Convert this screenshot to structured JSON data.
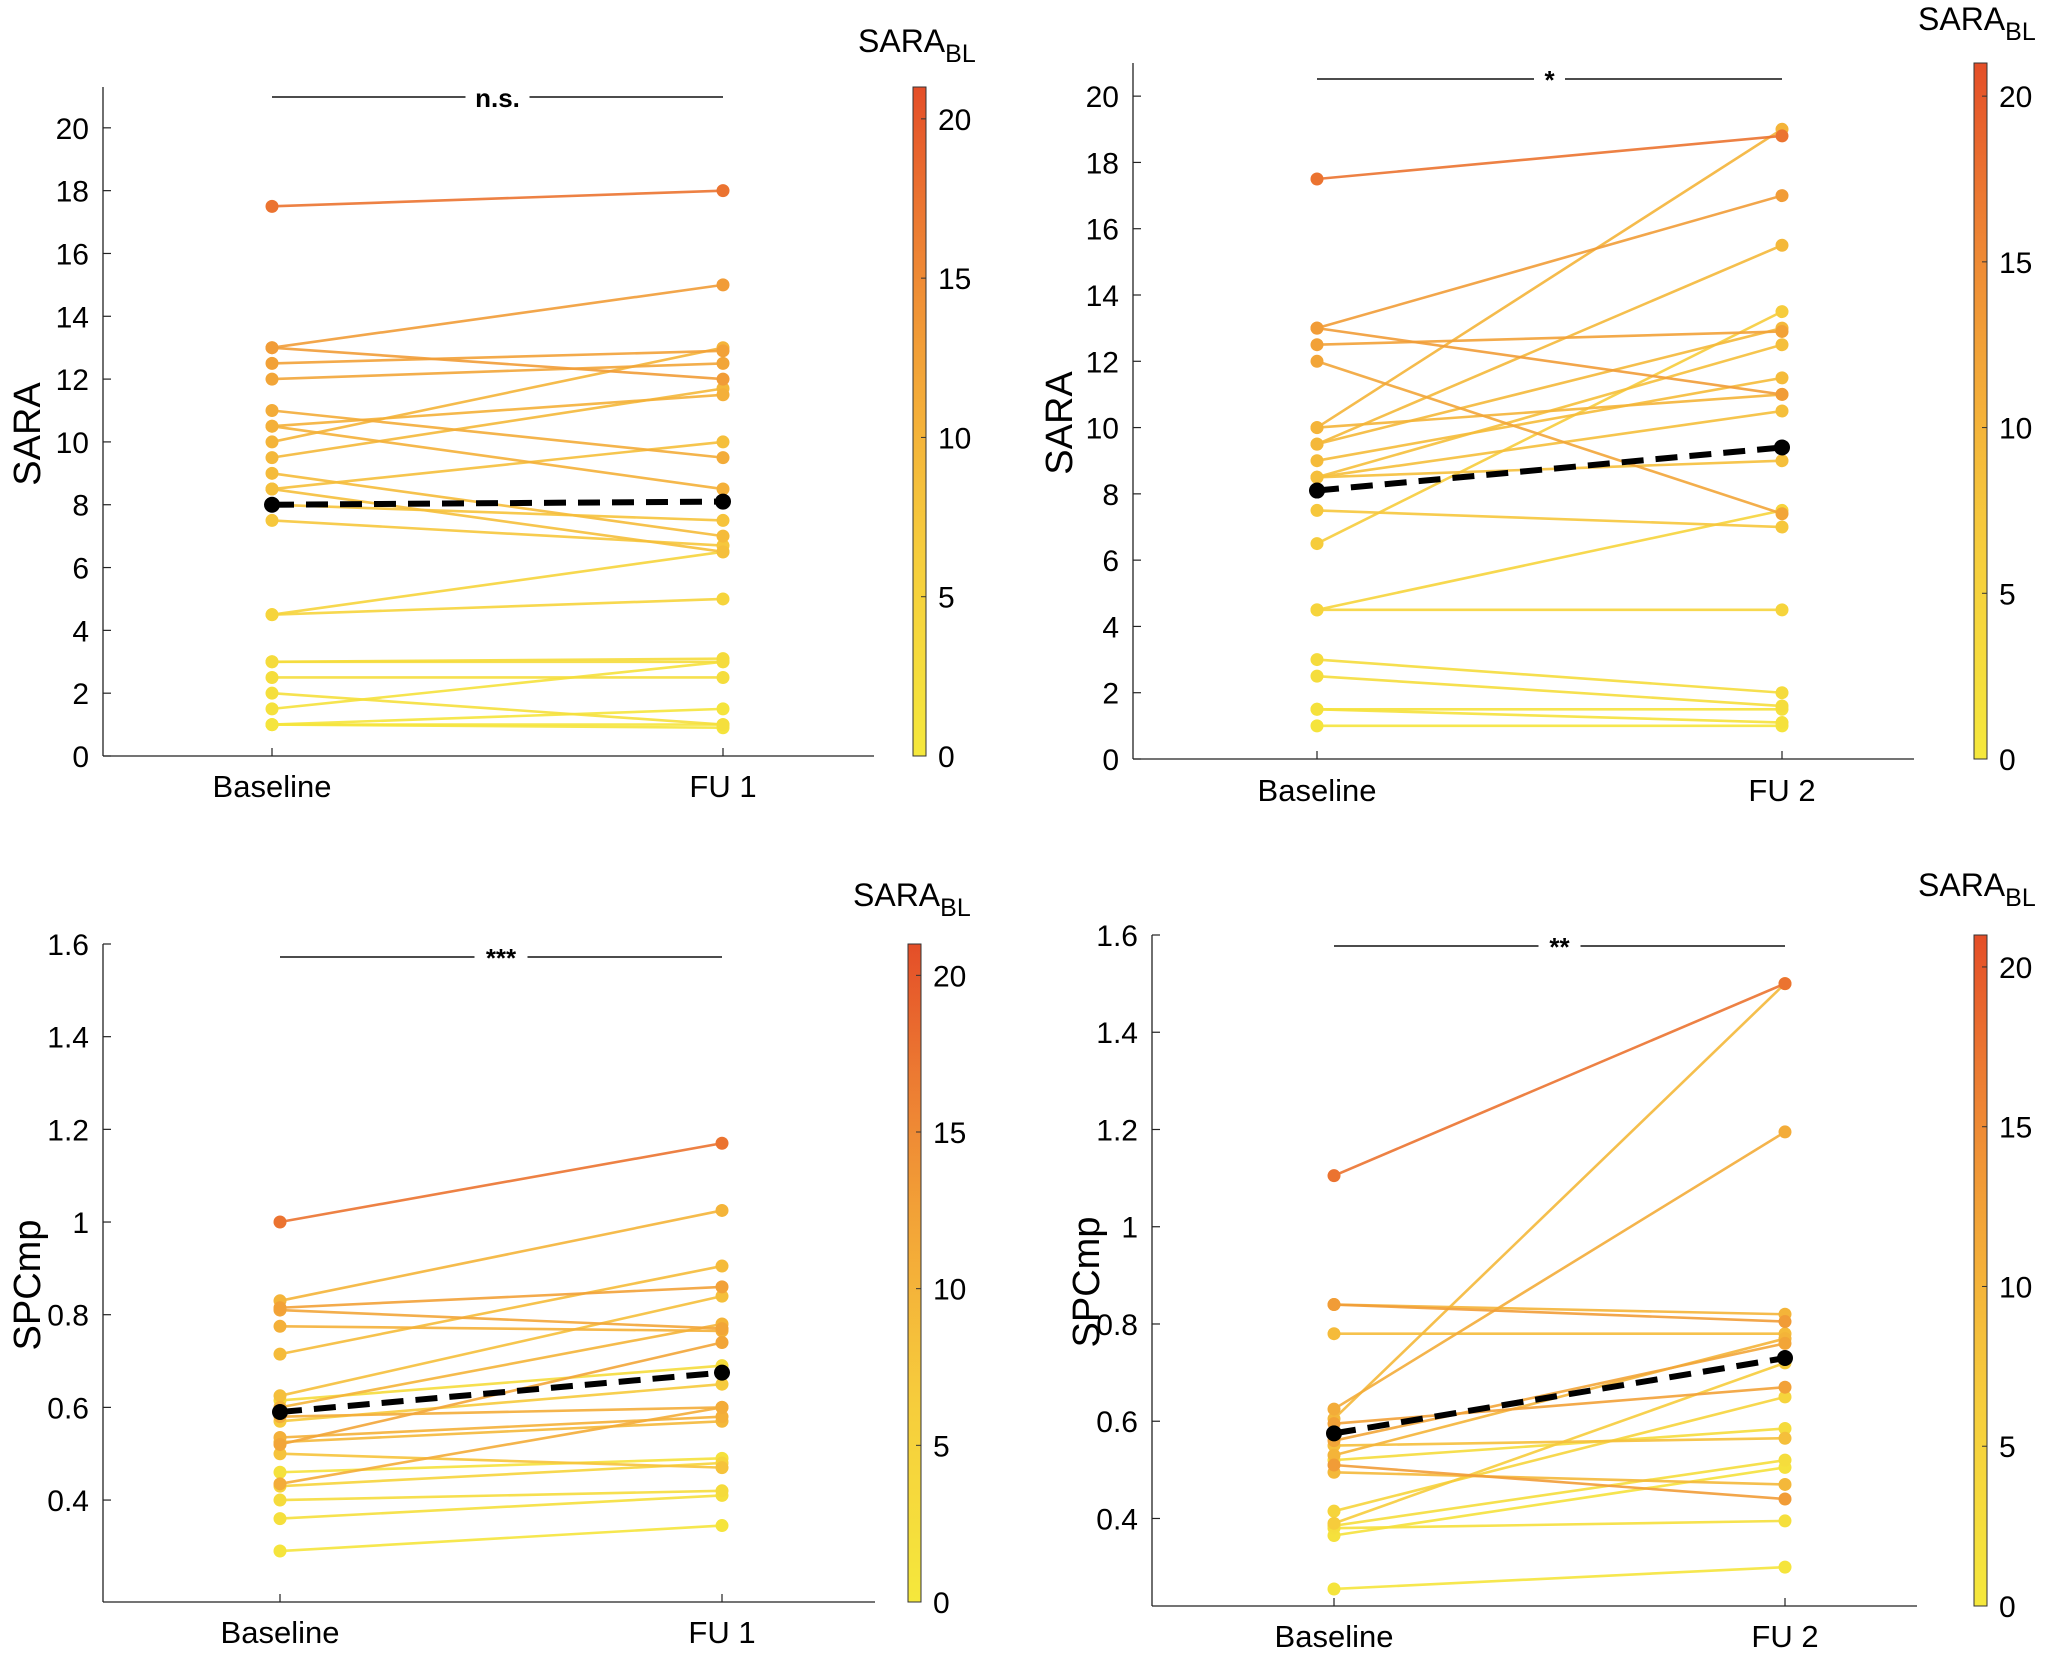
{
  "chart_data": [
    {
      "type": "line",
      "panel": "top-left",
      "x": [
        "Baseline",
        "FU 1"
      ],
      "ylabel": "SARA",
      "ylim": [
        0,
        21.3
      ],
      "yticks": [
        0,
        2,
        4,
        6,
        8,
        10,
        12,
        14,
        16,
        18,
        20
      ],
      "significance": "n.s.",
      "colorbar": {
        "label_main": "SARA",
        "label_sub": "BL",
        "range": [
          0,
          21
        ],
        "ticks": [
          0,
          5,
          10,
          15,
          20
        ]
      },
      "series": [
        {
          "baseline_sara": 17.5,
          "values": [
            17.5,
            18
          ]
        },
        {
          "baseline_sara": 13,
          "values": [
            13,
            12
          ]
        },
        {
          "baseline_sara": 13,
          "values": [
            13,
            15
          ]
        },
        {
          "baseline_sara": 12.5,
          "values": [
            12.5,
            12.9
          ]
        },
        {
          "baseline_sara": 12,
          "values": [
            12,
            12.5
          ]
        },
        {
          "baseline_sara": 11,
          "values": [
            11,
            9.5
          ]
        },
        {
          "baseline_sara": 10.5,
          "values": [
            10.5,
            11.5
          ]
        },
        {
          "baseline_sara": 10.5,
          "values": [
            10.5,
            8.5
          ]
        },
        {
          "baseline_sara": 10,
          "values": [
            10,
            13
          ]
        },
        {
          "baseline_sara": 9.5,
          "values": [
            9.5,
            11.7
          ]
        },
        {
          "baseline_sara": 9,
          "values": [
            9,
            7
          ]
        },
        {
          "baseline_sara": 8.5,
          "values": [
            8.5,
            10
          ]
        },
        {
          "baseline_sara": 8.5,
          "values": [
            8.5,
            6.5
          ]
        },
        {
          "baseline_sara": 8,
          "values": [
            8,
            7.5
          ]
        },
        {
          "baseline_sara": 7.5,
          "values": [
            7.5,
            6.7
          ]
        },
        {
          "baseline_sara": 4.5,
          "values": [
            4.5,
            6.5
          ]
        },
        {
          "baseline_sara": 4.5,
          "values": [
            4.5,
            5
          ]
        },
        {
          "baseline_sara": 3,
          "values": [
            3,
            3
          ]
        },
        {
          "baseline_sara": 3,
          "values": [
            3,
            3.1
          ]
        },
        {
          "baseline_sara": 2.5,
          "values": [
            2.5,
            2.5
          ]
        },
        {
          "baseline_sara": 2,
          "values": [
            2,
            1
          ]
        },
        {
          "baseline_sara": 1.5,
          "values": [
            1.5,
            3
          ]
        },
        {
          "baseline_sara": 1,
          "values": [
            1,
            1.5
          ]
        },
        {
          "baseline_sara": 1,
          "values": [
            1,
            1
          ]
        },
        {
          "baseline_sara": 1,
          "values": [
            1,
            0.9
          ]
        }
      ],
      "mean": [
        8,
        8.1
      ]
    },
    {
      "type": "line",
      "panel": "top-right",
      "x": [
        "Baseline",
        "FU 2"
      ],
      "ylabel": "SARA",
      "ylim": [
        0,
        21
      ],
      "yticks": [
        0,
        2,
        4,
        6,
        8,
        10,
        12,
        14,
        16,
        18,
        20
      ],
      "significance": "*",
      "colorbar": {
        "label_main": "SARA",
        "label_sub": "BL",
        "range": [
          0,
          21
        ],
        "ticks": [
          0,
          5,
          10,
          15,
          20
        ]
      },
      "series": [
        {
          "baseline_sara": 17.5,
          "values": [
            17.5,
            18.8
          ]
        },
        {
          "baseline_sara": 13,
          "values": [
            13,
            17
          ]
        },
        {
          "baseline_sara": 13,
          "values": [
            13,
            11
          ]
        },
        {
          "baseline_sara": 12.5,
          "values": [
            12.5,
            12.9
          ]
        },
        {
          "baseline_sara": 12,
          "values": [
            12,
            7.4
          ]
        },
        {
          "baseline_sara": 10,
          "values": [
            10,
            19
          ]
        },
        {
          "baseline_sara": 10,
          "values": [
            10,
            11
          ]
        },
        {
          "baseline_sara": 9.5,
          "values": [
            9.5,
            15.5
          ]
        },
        {
          "baseline_sara": 9.5,
          "values": [
            9.5,
            13
          ]
        },
        {
          "baseline_sara": 9,
          "values": [
            9,
            11.5
          ]
        },
        {
          "baseline_sara": 8.5,
          "values": [
            8.5,
            12.5
          ]
        },
        {
          "baseline_sara": 8.5,
          "values": [
            8.5,
            10.5
          ]
        },
        {
          "baseline_sara": 8.5,
          "values": [
            8.5,
            9
          ]
        },
        {
          "baseline_sara": 7.5,
          "values": [
            7.5,
            7
          ]
        },
        {
          "baseline_sara": 6.5,
          "values": [
            6.5,
            13.5
          ]
        },
        {
          "baseline_sara": 4.5,
          "values": [
            4.5,
            7.5
          ]
        },
        {
          "baseline_sara": 4.5,
          "values": [
            4.5,
            4.5
          ]
        },
        {
          "baseline_sara": 3,
          "values": [
            3,
            2
          ]
        },
        {
          "baseline_sara": 2.5,
          "values": [
            2.5,
            1.6
          ]
        },
        {
          "baseline_sara": 1.5,
          "values": [
            1.5,
            1.5
          ]
        },
        {
          "baseline_sara": 1.5,
          "values": [
            1.5,
            1.1
          ]
        },
        {
          "baseline_sara": 1,
          "values": [
            1,
            1
          ]
        }
      ],
      "mean": [
        8.1,
        9.4
      ]
    },
    {
      "type": "line",
      "panel": "bottom-left",
      "x": [
        "Baseline",
        "FU 1"
      ],
      "ylabel": "SPCmp",
      "ylim": [
        0.18,
        1.6
      ],
      "yticks": [
        0.4,
        0.6,
        0.8,
        1,
        1.2,
        1.4,
        1.6
      ],
      "significance": "***",
      "colorbar": {
        "label_main": "SARA",
        "label_sub": "BL",
        "range": [
          0,
          21
        ],
        "ticks": [
          0,
          5,
          10,
          15,
          20
        ]
      },
      "series": [
        {
          "baseline_sara": 17.5,
          "values": [
            1.0,
            1.17
          ]
        },
        {
          "baseline_sara": 10,
          "values": [
            0.83,
            1.025
          ]
        },
        {
          "baseline_sara": 12.5,
          "values": [
            0.815,
            0.86
          ]
        },
        {
          "baseline_sara": 12,
          "values": [
            0.81,
            0.77
          ]
        },
        {
          "baseline_sara": 10.5,
          "values": [
            0.775,
            0.765
          ]
        },
        {
          "baseline_sara": 9,
          "values": [
            0.715,
            0.905
          ]
        },
        {
          "baseline_sara": 8.5,
          "values": [
            0.625,
            0.84
          ]
        },
        {
          "baseline_sara": 10,
          "values": [
            0.6,
            0.78
          ]
        },
        {
          "baseline_sara": 11,
          "values": [
            0.58,
            0.6
          ]
        },
        {
          "baseline_sara": 3,
          "values": [
            0.615,
            0.69
          ]
        },
        {
          "baseline_sara": 10.5,
          "values": [
            0.535,
            0.58
          ]
        },
        {
          "baseline_sara": 9.5,
          "values": [
            0.525,
            0.57
          ]
        },
        {
          "baseline_sara": 12,
          "values": [
            0.52,
            0.74
          ]
        },
        {
          "baseline_sara": 7,
          "values": [
            0.57,
            0.65
          ]
        },
        {
          "baseline_sara": 8,
          "values": [
            0.5,
            0.47
          ]
        },
        {
          "baseline_sara": 11,
          "values": [
            0.435,
            0.6
          ]
        },
        {
          "baseline_sara": 4.5,
          "values": [
            0.43,
            0.48
          ]
        },
        {
          "baseline_sara": 3,
          "values": [
            0.4,
            0.42
          ]
        },
        {
          "baseline_sara": 2,
          "values": [
            0.36,
            0.41
          ]
        },
        {
          "baseline_sara": 1,
          "values": [
            0.29,
            0.345
          ]
        },
        {
          "baseline_sara": 1.5,
          "values": [
            0.46,
            0.49
          ]
        }
      ],
      "mean": [
        0.59,
        0.675
      ]
    },
    {
      "type": "line",
      "panel": "bottom-right",
      "x": [
        "Baseline",
        "FU 2"
      ],
      "ylabel": "SPCmp",
      "ylim": [
        0.22,
        1.6
      ],
      "yticks": [
        0.4,
        0.6,
        0.8,
        1,
        1.2,
        1.4,
        1.6
      ],
      "significance": "**",
      "colorbar": {
        "label_main": "SARA",
        "label_sub": "BL",
        "range": [
          0,
          21
        ],
        "ticks": [
          0,
          5,
          10,
          15,
          20
        ]
      },
      "series": [
        {
          "baseline_sara": 17.5,
          "values": [
            1.105,
            1.5
          ]
        },
        {
          "baseline_sara": 10,
          "values": [
            0.84,
            0.82
          ]
        },
        {
          "baseline_sara": 13,
          "values": [
            0.84,
            0.805
          ]
        },
        {
          "baseline_sara": 9,
          "values": [
            0.78,
            0.78
          ]
        },
        {
          "baseline_sara": 11,
          "values": [
            0.625,
            1.195
          ]
        },
        {
          "baseline_sara": 9.5,
          "values": [
            0.605,
            1.5
          ]
        },
        {
          "baseline_sara": 12.5,
          "values": [
            0.595,
            0.67
          ]
        },
        {
          "baseline_sara": 12,
          "values": [
            0.56,
            0.76
          ]
        },
        {
          "baseline_sara": 10,
          "values": [
            0.53,
            0.77
          ]
        },
        {
          "baseline_sara": 8.5,
          "values": [
            0.55,
            0.565
          ]
        },
        {
          "baseline_sara": 13,
          "values": [
            0.51,
            0.44
          ]
        },
        {
          "baseline_sara": 9.5,
          "values": [
            0.495,
            0.47
          ]
        },
        {
          "baseline_sara": 3,
          "values": [
            0.52,
            0.585
          ]
        },
        {
          "baseline_sara": 4.5,
          "values": [
            0.415,
            0.65
          ]
        },
        {
          "baseline_sara": 6.5,
          "values": [
            0.39,
            0.72
          ]
        },
        {
          "baseline_sara": 2.5,
          "values": [
            0.385,
            0.52
          ]
        },
        {
          "baseline_sara": 1.5,
          "values": [
            0.365,
            0.505
          ]
        },
        {
          "baseline_sara": 2,
          "values": [
            0.38,
            0.395
          ]
        },
        {
          "baseline_sara": 1,
          "values": [
            0.255,
            0.3
          ]
        }
      ],
      "mean": [
        0.575,
        0.73
      ]
    }
  ]
}
